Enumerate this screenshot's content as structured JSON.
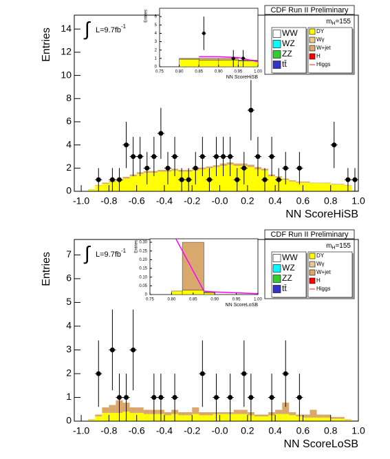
{
  "chart_data": [
    {
      "type": "histogram",
      "xlabel": "NN ScoreHiSB",
      "ylabel": "Entries",
      "header": "CDF Run II Preliminary",
      "mass_label": {
        "text": "m",
        "sub": "H",
        "rest": "=155"
      },
      "lumi": {
        "text": "L=9.7fb",
        "sup": "-1"
      },
      "xlim": [
        -1.05,
        1.0
      ],
      "ylim": [
        0,
        15.2
      ],
      "xticks": [
        {
          "value": -1.0,
          "label": "-1.0"
        },
        -0.8,
        -0.6,
        -0.4,
        -0.2,
        {
          "value": 0,
          "label": "-0.0"
        },
        0.2,
        0.4,
        0.6,
        0.8,
        {
          "value": 1.0,
          "label": "1.0"
        }
      ],
      "yticks": [
        0,
        2,
        4,
        6,
        8,
        10,
        12,
        14
      ],
      "bins": [
        -1.0,
        -0.95,
        -0.9,
        -0.85,
        -0.8,
        -0.75,
        -0.7,
        -0.65,
        -0.6,
        -0.55,
        -0.5,
        -0.45,
        -0.4,
        -0.35,
        -0.3,
        -0.25,
        -0.2,
        -0.15,
        -0.1,
        -0.05,
        0.0,
        0.05,
        0.1,
        0.15,
        0.2,
        0.25,
        0.3,
        0.35,
        0.4,
        0.45,
        0.5,
        0.55,
        0.6,
        0.65,
        0.7,
        0.75,
        0.8,
        0.85,
        0.9,
        0.95,
        1.0
      ],
      "series": [
        {
          "name": "WW",
          "color": "#ffffff",
          "values": [
            0,
            0.02,
            0.05,
            0.05,
            0.1,
            0.1,
            0.15,
            0.15,
            0.15,
            0.15,
            0.15,
            0.15,
            0.15,
            0.15,
            0.15,
            0.15,
            0.15,
            0.15,
            0.15,
            0.2,
            0.2,
            0.2,
            0.2,
            0.2,
            0.2,
            0.2,
            0.15,
            0.15,
            0.1,
            0.1,
            0.05,
            0.05,
            0.05,
            0.05,
            0.05,
            0.05,
            0.05,
            0.05,
            0.05,
            0.02
          ]
        },
        {
          "name": "WZ",
          "color": "#00ffff"
        },
        {
          "name": "ZZ",
          "color": "#33cc33"
        },
        {
          "name": "tt̄",
          "color": "#3333cc"
        },
        {
          "name": "DY",
          "color": "#ffff00",
          "values": [
            0,
            0.15,
            0.5,
            0.65,
            0.8,
            0.9,
            1.1,
            1.3,
            1.5,
            1.6,
            1.6,
            1.7,
            1.7,
            1.8,
            1.7,
            1.7,
            1.8,
            1.9,
            2.0,
            2.1,
            2.2,
            2.3,
            2.2,
            2.2,
            2.1,
            1.9,
            1.8,
            1.3,
            1.2,
            1.0,
            0.85,
            0.75,
            0.75,
            0.7,
            0.7,
            0.7,
            0.6,
            0.6,
            0.5,
            0.05
          ]
        },
        {
          "name": "Wγ",
          "color": "#e8c890"
        },
        {
          "name": "W+jet",
          "color": "#d9a86c",
          "values": [
            0,
            0.03,
            0.05,
            0.1,
            0.1,
            0.1,
            0.15,
            0.15,
            0.15,
            0.15,
            0.15,
            0.15,
            0.15,
            0.15,
            0.15,
            0.15,
            0.15,
            0.15,
            0.15,
            0.15,
            0.2,
            0.2,
            0.2,
            0.2,
            0.2,
            0.2,
            0.15,
            0.15,
            0.1,
            0.1,
            0.1,
            0.1,
            0.1,
            0.05,
            0.05,
            0.05,
            0.05,
            0.05,
            0.05,
            0.03
          ]
        },
        {
          "name": "H",
          "color": "#ff0000"
        },
        {
          "name": "Higgs",
          "color": "#ff6666"
        }
      ],
      "data": {
        "x": [
          -0.875,
          -0.775,
          -0.725,
          -0.675,
          -0.625,
          -0.575,
          -0.525,
          -0.475,
          -0.425,
          -0.375,
          -0.325,
          -0.275,
          -0.225,
          -0.175,
          -0.125,
          -0.075,
          -0.025,
          0.025,
          0.075,
          0.125,
          0.175,
          0.225,
          0.275,
          0.325,
          0.375,
          0.425,
          0.475,
          0.575,
          0.825,
          0.925,
          0.975
        ],
        "y": [
          1,
          1,
          1,
          4,
          3,
          3,
          2,
          3,
          5,
          2,
          3,
          1,
          1,
          2,
          3,
          1,
          3,
          3,
          3,
          1,
          2,
          7,
          3,
          1,
          3,
          1,
          2,
          2,
          4,
          1,
          1
        ],
        "errors": [
          1,
          1,
          1,
          2,
          1.7,
          1.7,
          1.4,
          1.7,
          2.2,
          1.4,
          1.7,
          1,
          1,
          1.4,
          1.7,
          1,
          1.7,
          1.7,
          1.7,
          1,
          1.4,
          2.6,
          1.7,
          1,
          1.7,
          1,
          1.4,
          1.4,
          2,
          1,
          1
        ]
      },
      "inset": {
        "xlabel": "NN ScoreHiSB",
        "ylabel": "Entries",
        "xlim": [
          0.75,
          1.0
        ],
        "ylim": [
          0,
          7
        ],
        "xticks": [
          0.75,
          {
            "value": 0.8,
            "label": "0.80"
          },
          0.85,
          {
            "value": 0.9,
            "label": "0.90"
          },
          0.95,
          {
            "value": 1.0,
            "label": "1.00"
          }
        ],
        "yticks": [
          0,
          1,
          2,
          3,
          4,
          5,
          6
        ],
        "bins": [
          0.75,
          0.8,
          0.85,
          0.9,
          0.95,
          1.0
        ],
        "series": [
          {
            "color": "#ffff00",
            "values": [
              0,
              0.9,
              0.8,
              0.8,
              0.7
            ]
          },
          {
            "color": "#d9a86c",
            "values": [
              0,
              0.1,
              0.2,
              0.2,
              0.1
            ]
          }
        ],
        "higgs": {
          "color": "#ff00ff",
          "x": [
            0.85,
            0.9,
            0.95,
            1.0
          ],
          "y": [
            1.2,
            1.2,
            1.1,
            0.6
          ]
        },
        "data": {
          "x": [
            0.8625,
            0.9375,
            0.9625
          ],
          "y": [
            4,
            1,
            1
          ],
          "errors": [
            2,
            1,
            1
          ]
        }
      }
    },
    {
      "type": "histogram",
      "xlabel": "NN ScoreLoSB",
      "ylabel": "Entries",
      "header": "CDF Run II Preliminary",
      "mass_label": {
        "text": "m",
        "sub": "H",
        "rest": "=155"
      },
      "lumi": {
        "text": "L=9.7fb",
        "sup": "-1"
      },
      "xlim": [
        -1.05,
        1.0
      ],
      "ylim": [
        0,
        7.65
      ],
      "xticks": [
        {
          "value": -1.0,
          "label": "-1.0"
        },
        -0.8,
        -0.6,
        -0.4,
        -0.2,
        {
          "value": 0,
          "label": "-0.0"
        },
        0.2,
        0.4,
        0.6,
        0.8,
        {
          "value": 1.0,
          "label": "1.0"
        }
      ],
      "yticks": [
        0,
        1,
        2,
        3,
        4,
        5,
        6,
        7
      ],
      "bins": [
        -1.0,
        -0.95,
        -0.9,
        -0.85,
        -0.8,
        -0.75,
        -0.7,
        -0.65,
        -0.6,
        -0.55,
        -0.5,
        -0.45,
        -0.4,
        -0.35,
        -0.3,
        -0.25,
        -0.2,
        -0.15,
        -0.1,
        -0.05,
        0.0,
        0.05,
        0.1,
        0.15,
        0.2,
        0.25,
        0.3,
        0.35,
        0.4,
        0.45,
        0.5,
        0.55,
        0.6,
        0.65,
        0.7,
        0.75,
        0.8,
        0.85,
        0.9,
        0.95,
        1.0
      ],
      "series": [
        {
          "name": "WW",
          "color": "#ffffff",
          "values": [
            0,
            0.02,
            0.02,
            0.02,
            0.02,
            0.02,
            0.02,
            0.02,
            0.02,
            0.02,
            0.02,
            0.02,
            0.02,
            0.02,
            0.02,
            0.02,
            0.02,
            0.02,
            0.02,
            0.02,
            0.02,
            0.02,
            0.02,
            0.02,
            0.02,
            0.02,
            0.02,
            0.02,
            0.02,
            0.02,
            0.02,
            0.02,
            0.02,
            0.02,
            0.02,
            0.02,
            0.02,
            0.02,
            0.02,
            0.02
          ]
        },
        {
          "name": "WZ",
          "color": "#00ffff"
        },
        {
          "name": "ZZ",
          "color": "#33cc33"
        },
        {
          "name": "tt̄",
          "color": "#3333cc"
        },
        {
          "name": "DY",
          "color": "#ffff00",
          "values": [
            0,
            0.05,
            0.2,
            0.35,
            0.35,
            0.35,
            0.4,
            0.35,
            0.35,
            0.3,
            0.3,
            0.3,
            0.25,
            0.3,
            0.25,
            0.25,
            0.3,
            0.25,
            0.25,
            0.3,
            0.3,
            0.3,
            0.3,
            0.3,
            0.25,
            0.2,
            0.2,
            0.25,
            0.3,
            0.3,
            0.25,
            0.2,
            0.15,
            0.15,
            0.15,
            0.15,
            0.1,
            0.1,
            0.05,
            0.02
          ]
        },
        {
          "name": "Wγ",
          "color": "#e8c890"
        },
        {
          "name": "W+jet",
          "color": "#d9a86c",
          "values": [
            0,
            0.03,
            0.08,
            0.23,
            0.33,
            0.53,
            0.38,
            0.23,
            0.23,
            0.18,
            0.18,
            0.18,
            0.13,
            0.18,
            0.13,
            0.13,
            0.28,
            0.13,
            0.13,
            0.08,
            0.08,
            0.08,
            0.18,
            0.18,
            0.13,
            0.08,
            0.08,
            0.13,
            0.18,
            0.48,
            0.13,
            0.08,
            0.13,
            0.33,
            0.13,
            0.13,
            0.08,
            0.08,
            0.03,
            0.01
          ]
        },
        {
          "name": "H",
          "color": "#ff0000"
        },
        {
          "name": "Higgs",
          "color": "#ff6666"
        }
      ],
      "data": {
        "x": [
          -0.875,
          -0.775,
          -0.725,
          -0.675,
          -0.625,
          -0.475,
          -0.425,
          -0.325,
          -0.125,
          -0.025,
          0.075,
          0.175,
          0.225,
          0.375,
          0.475,
          0.575
        ],
        "y": [
          2,
          3,
          1,
          1,
          3,
          1,
          1,
          1,
          2,
          1,
          1,
          2,
          1,
          1,
          2,
          1
        ],
        "errors": [
          1.4,
          1.7,
          1,
          1,
          1.7,
          1,
          1,
          1,
          1.4,
          1,
          1,
          1.4,
          1,
          1,
          1.4,
          1
        ]
      },
      "inset": {
        "xlabel": "NN ScoreLoSB",
        "ylabel": "Entries",
        "xlim": [
          0.75,
          1.0
        ],
        "ylim": [
          0,
          0.32
        ],
        "xticks": [
          0.75,
          {
            "value": 0.8,
            "label": "0.80"
          },
          0.85,
          {
            "value": 0.9,
            "label": "0.90"
          },
          0.95,
          {
            "value": 1.0,
            "label": "1.00"
          }
        ],
        "yticks": [
          0,
          0.05,
          {
            "value": 0.1,
            "label": "0.10"
          },
          0.15,
          {
            "value": 0.2,
            "label": "0.20"
          },
          0.25,
          {
            "value": 0.3,
            "label": "0.30"
          }
        ],
        "bins": [
          0.75,
          0.8,
          0.825,
          0.875,
          0.9,
          1.0
        ],
        "series": [
          {
            "color": "#ffff00",
            "values": [
              0,
              0.02,
              0.025,
              0.01,
              0
            ]
          },
          {
            "color": "#d9a86c",
            "values": [
              0,
              0,
              0.275,
              0.005,
              0
            ]
          }
        ],
        "higgs": {
          "color": "#ff00ff",
          "x": [
            0.81,
            0.875,
            0.9,
            1.0
          ],
          "y": [
            0.32,
            0.02,
            0.015,
            0.005
          ]
        }
      }
    }
  ]
}
